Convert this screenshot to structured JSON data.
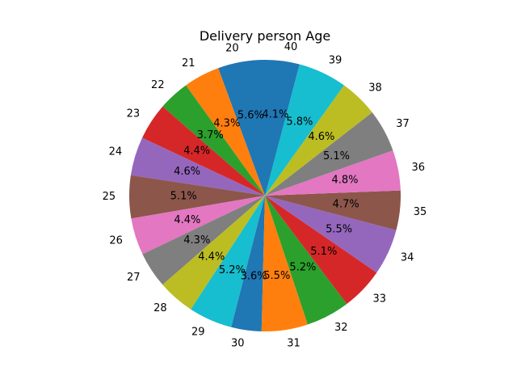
{
  "chart_data": {
    "type": "pie",
    "title": "Delivery person Age",
    "categories": [
      "20",
      "21",
      "22",
      "23",
      "24",
      "25",
      "26",
      "27",
      "28",
      "29",
      "30",
      "31",
      "32",
      "33",
      "34",
      "35",
      "36",
      "37",
      "38",
      "39",
      "40"
    ],
    "values": [
      5.6,
      4.3,
      3.7,
      4.4,
      4.6,
      5.1,
      4.4,
      4.3,
      4.4,
      5.2,
      3.6,
      5.5,
      5.2,
      5.1,
      5.5,
      4.7,
      4.8,
      5.1,
      4.6,
      5.8,
      4.1
    ],
    "value_labels": [
      "5.6%",
      "4.3%",
      "3.7%",
      "4.4%",
      "4.6%",
      "5.1%",
      "4.4%",
      "4.3%",
      "4.4%",
      "5.2%",
      "3.6%",
      "5.5%",
      "5.2%",
      "5.1%",
      "5.5%",
      "4.7%",
      "4.8%",
      "5.1%",
      "4.6%",
      "5.8%",
      "4.1%"
    ],
    "colors": [
      "#1f77b4",
      "#ff7f0e",
      "#2ca02c",
      "#d62728",
      "#9467bd",
      "#8c564b",
      "#e377c2",
      "#7f7f7f",
      "#bcbd22",
      "#17becf"
    ],
    "start_angle_deg": 90,
    "direction": "counterclockwise"
  }
}
